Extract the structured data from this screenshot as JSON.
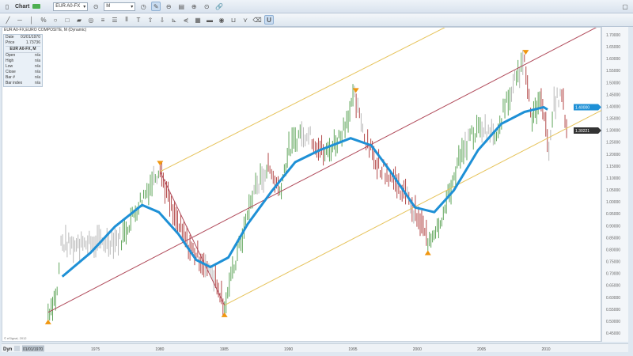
{
  "window": {
    "title": "Chart",
    "symbol": "EUR A0-FX",
    "interval": "M"
  },
  "legend": {
    "header": "EUR A0-FX,EURO COMPOSITE, M (Dynamic)"
  },
  "info_panel": {
    "date_label": "Date",
    "date": "01/01/1970",
    "price_label": "Price",
    "price": "1.73736",
    "section": "EUR A0-FX, M",
    "rows": [
      {
        "k": "Open",
        "v": "n/a"
      },
      {
        "k": "High",
        "v": "n/a"
      },
      {
        "k": "Low",
        "v": "n/a"
      },
      {
        "k": "Close",
        "v": "n/a"
      },
      {
        "k": "Bar #",
        "v": "n/a"
      },
      {
        "k": "Bar index",
        "v": "n/a"
      }
    ]
  },
  "copyright": "© eSignal, 2012",
  "bottom": {
    "mode": "Dyn",
    "date": "01/01/1970"
  },
  "colors": {
    "up": "#5fa55a",
    "down": "#b44a4a",
    "neutral": "#b9b9b9",
    "ma": "#1e90d6",
    "channel": "#e6c35a",
    "median": "#b04a5a",
    "marker": "#f0960f"
  },
  "chart_data": {
    "type": "bar",
    "ylim": [
      0.45,
      1.7
    ],
    "y_ticks": [
      "1.70000",
      "1.65000",
      "1.60000",
      "1.55000",
      "1.50000",
      "1.45000",
      "1.40000",
      "1.35000",
      "1.30000",
      "1.25000",
      "1.20000",
      "1.15000",
      "1.10000",
      "1.05000",
      "1.00000",
      "0.95000",
      "0.90000",
      "0.85000",
      "0.80000",
      "0.75000",
      "0.70000",
      "0.65000",
      "0.60000",
      "0.55000",
      "0.50000",
      "0.45000"
    ],
    "x_ticks": [
      "1975",
      "1980",
      "1985",
      "1990",
      "1995",
      "2000",
      "2005",
      "2010"
    ],
    "price_tags": [
      {
        "label": "1.40000",
        "value": 1.4,
        "color": "#1e90d6"
      },
      {
        "label": "1.30221",
        "value": 1.30221,
        "color": "#333333"
      }
    ],
    "price_path": [
      [
        1971.3,
        0.54
      ],
      [
        1972,
        0.62
      ],
      [
        1972.3,
        0.83
      ],
      [
        1973.5,
        0.82
      ],
      [
        1975,
        0.83
      ],
      [
        1977,
        0.85
      ],
      [
        1978.2,
        0.98
      ],
      [
        1979.5,
        1.1
      ],
      [
        1980,
        1.14
      ],
      [
        1981,
        0.95
      ],
      [
        1982.2,
        0.82
      ],
      [
        1983.4,
        0.75
      ],
      [
        1984.3,
        0.69
      ],
      [
        1985,
        0.57
      ],
      [
        1986,
        0.78
      ],
      [
        1987.3,
        1.05
      ],
      [
        1988.4,
        1.15
      ],
      [
        1989.3,
        1.05
      ],
      [
        1990,
        1.22
      ],
      [
        1991,
        1.3
      ],
      [
        1991.8,
        1.27
      ],
      [
        1992.8,
        1.2
      ],
      [
        1994,
        1.28
      ],
      [
        1995.1,
        1.44
      ],
      [
        1996,
        1.25
      ],
      [
        1997.1,
        1.15
      ],
      [
        1998.4,
        1.08
      ],
      [
        1999.2,
        1.02
      ],
      [
        2000.2,
        0.92
      ],
      [
        2000.8,
        0.84
      ],
      [
        2002,
        0.95
      ],
      [
        2003.2,
        1.18
      ],
      [
        2004.2,
        1.28
      ],
      [
        2005,
        1.32
      ],
      [
        2006,
        1.28
      ],
      [
        2007.3,
        1.48
      ],
      [
        2008.3,
        1.59
      ],
      [
        2008.9,
        1.35
      ],
      [
        2009.6,
        1.45
      ],
      [
        2010.2,
        1.22
      ],
      [
        2010.6,
        1.42
      ],
      [
        2011.2,
        1.45
      ],
      [
        2011.7,
        1.28
      ]
    ],
    "moving_average": [
      [
        1972.4,
        0.69
      ],
      [
        1974.6,
        0.79
      ],
      [
        1976.5,
        0.9
      ],
      [
        1978.6,
        0.99
      ],
      [
        1979.9,
        0.96
      ],
      [
        1981.4,
        0.87
      ],
      [
        1982.8,
        0.76
      ],
      [
        1983.9,
        0.73
      ],
      [
        1985.3,
        0.77
      ],
      [
        1986.8,
        0.91
      ],
      [
        1988.7,
        1.05
      ],
      [
        1990.5,
        1.17
      ],
      [
        1992.4,
        1.22
      ],
      [
        1994.8,
        1.27
      ],
      [
        1996.4,
        1.24
      ],
      [
        1997.9,
        1.13
      ],
      [
        1999.8,
        0.98
      ],
      [
        2001.3,
        0.96
      ],
      [
        2002.8,
        1.05
      ],
      [
        2004.7,
        1.22
      ],
      [
        2006.5,
        1.33
      ],
      [
        2008.3,
        1.38
      ],
      [
        2009.8,
        1.4
      ],
      [
        2010.1,
        1.39
      ]
    ],
    "lines": [
      {
        "role": "median",
        "from": [
          1971.3,
          0.54
        ],
        "to": [
          2014.3,
          1.746
        ]
      },
      {
        "role": "upper",
        "from": [
          1980,
          1.13
        ],
        "to": [
          2002.7,
          1.75
        ]
      },
      {
        "role": "lower",
        "from": [
          1985,
          0.57
        ],
        "to": [
          2015.3,
          1.415
        ]
      },
      {
        "role": "connector",
        "from": [
          1980,
          1.13
        ],
        "to": [
          1985,
          0.57
        ]
      }
    ],
    "markers": [
      {
        "dir": "down",
        "at": [
          1980,
          1.165
        ]
      },
      {
        "dir": "down",
        "at": [
          1995.2,
          1.47
        ]
      },
      {
        "dir": "down",
        "at": [
          2008.4,
          1.63
        ]
      },
      {
        "dir": "up",
        "at": [
          1971.3,
          0.5
        ]
      },
      {
        "dir": "up",
        "at": [
          1985,
          0.53
        ]
      },
      {
        "dir": "up",
        "at": [
          2000.8,
          0.79
        ]
      }
    ]
  }
}
